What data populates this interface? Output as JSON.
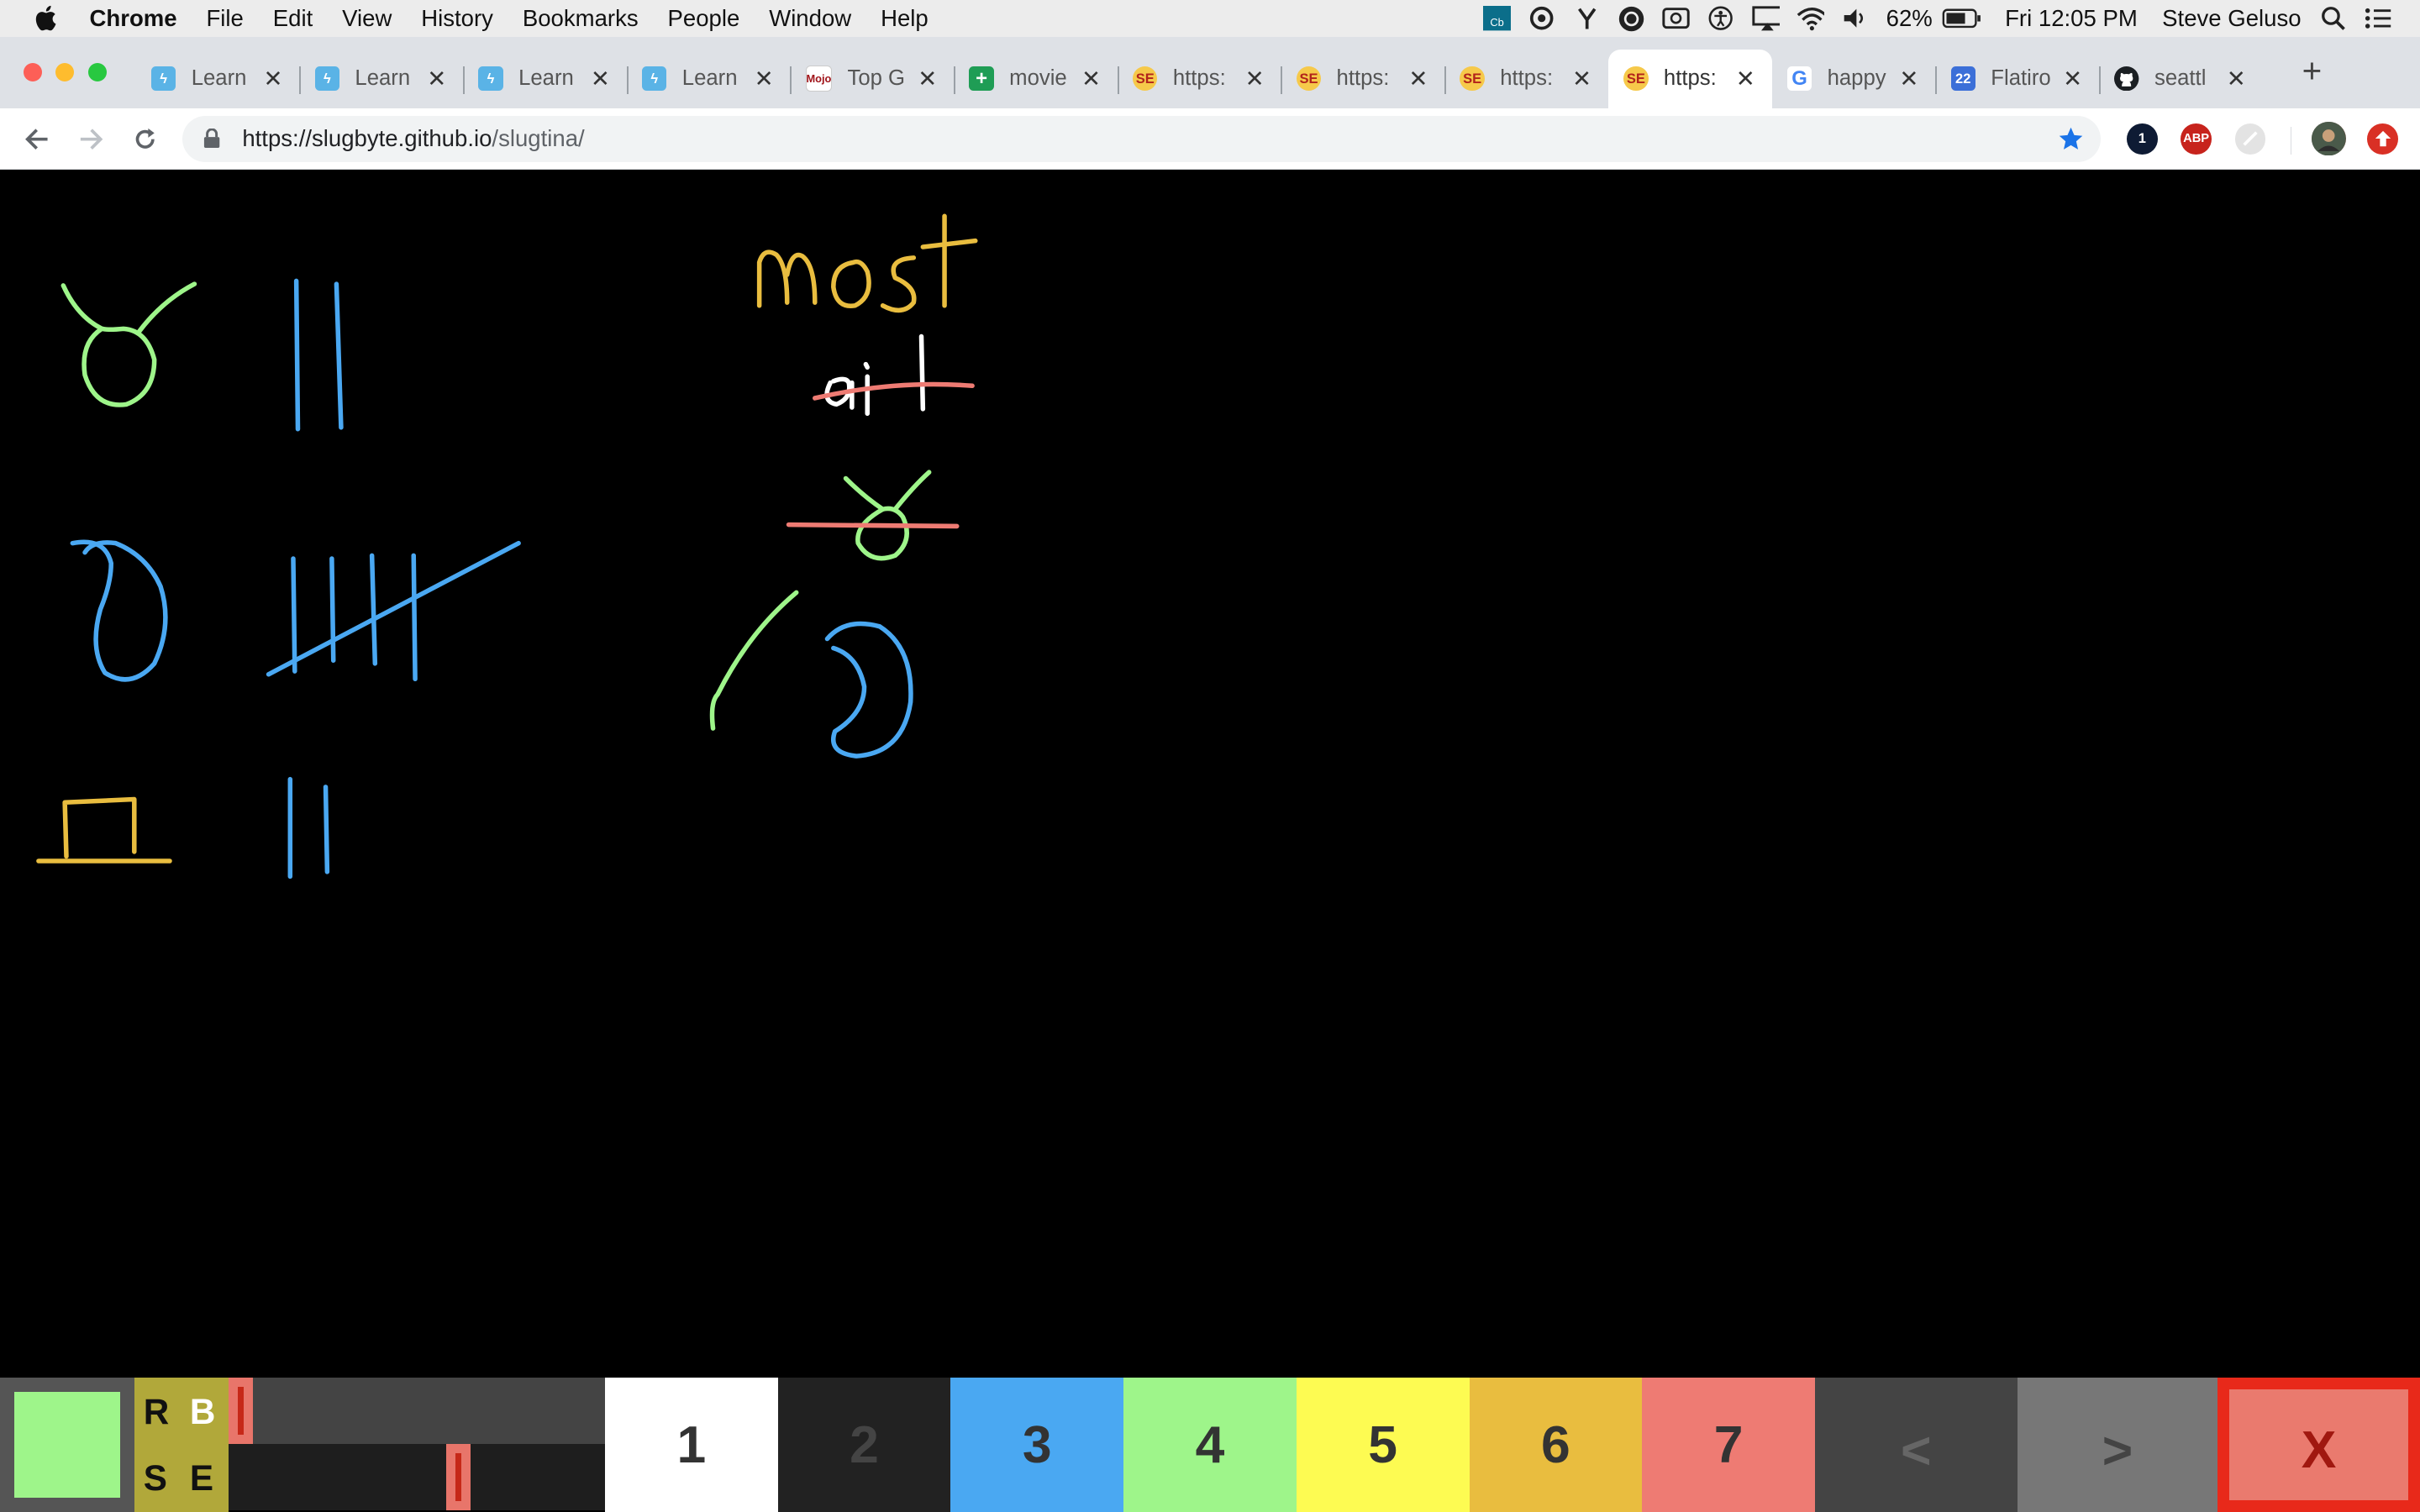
{
  "menubar": {
    "app": "Chrome",
    "items": [
      "File",
      "Edit",
      "View",
      "History",
      "Bookmarks",
      "People",
      "Window",
      "Help"
    ],
    "battery": "62%",
    "clock": "Fri 12:05 PM",
    "user": "Steve Geluso"
  },
  "tabs": [
    {
      "title": "Learn",
      "favicon": "learn-icon"
    },
    {
      "title": "Learn",
      "favicon": "learn-icon"
    },
    {
      "title": "Learn",
      "favicon": "learn-icon"
    },
    {
      "title": "Learn",
      "favicon": "learn-icon"
    },
    {
      "title": "Top G",
      "favicon": "mojo-icon",
      "favicon_text": "Mojo"
    },
    {
      "title": "movie",
      "favicon": "sheets-icon"
    },
    {
      "title": "https:",
      "favicon": "slug-icon",
      "favicon_text": "SE"
    },
    {
      "title": "https:",
      "favicon": "slug-icon",
      "favicon_text": "SE"
    },
    {
      "title": "https:",
      "favicon": "slug-icon",
      "favicon_text": "SE"
    },
    {
      "title": "https:",
      "favicon": "slug-icon",
      "favicon_text": "SE",
      "active": true
    },
    {
      "title": "happy",
      "favicon": "google-icon",
      "favicon_text": "G"
    },
    {
      "title": "Flatiro",
      "favicon": "calendar-icon",
      "favicon_text": "22"
    },
    {
      "title": "seattl",
      "favicon": "github-icon"
    }
  ],
  "address": {
    "host": "https://slugbyte.github.io",
    "path": "/slugtina/"
  },
  "extensions": {
    "onepassword": "1",
    "adblock": "ABP"
  },
  "palette": {
    "current_color": "#9ef58a",
    "mode_buttons": {
      "r": "R",
      "b": "B",
      "s": "S",
      "e": "E"
    },
    "slider_top_value": 0.0,
    "slider_bottom_value": 0.62,
    "colors": [
      {
        "label": "1",
        "bg": "#ffffff",
        "fg": "#333333"
      },
      {
        "label": "2",
        "bg": "#222222",
        "fg": "#444444"
      },
      {
        "label": "3",
        "bg": "#4aa8f2",
        "fg": "#333333"
      },
      {
        "label": "4",
        "bg": "#9ef58a",
        "fg": "#333333"
      },
      {
        "label": "5",
        "bg": "#fdfb52",
        "fg": "#333333"
      },
      {
        "label": "6",
        "bg": "#e9bd3f",
        "fg": "#333333"
      },
      {
        "label": "7",
        "bg": "#ee7b73",
        "fg": "#333333"
      }
    ],
    "prev_label": "<",
    "next_label": ">",
    "close_label": "X"
  }
}
